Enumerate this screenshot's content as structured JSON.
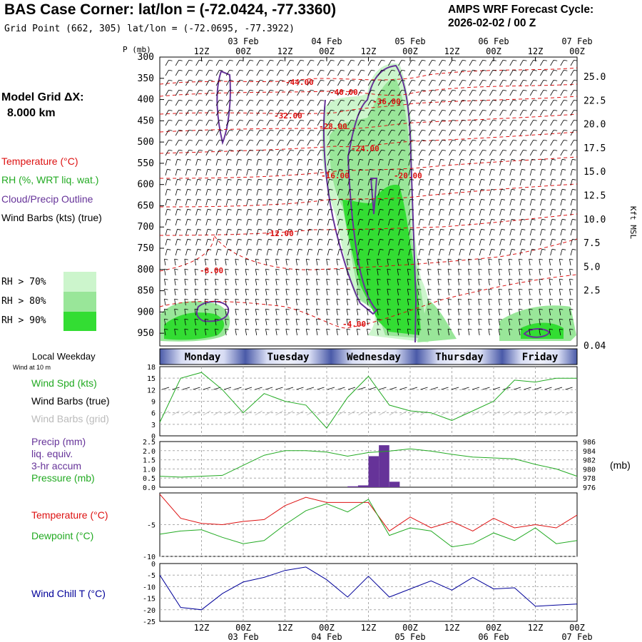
{
  "header": {
    "title": "BAS Case Corner:  lat/lon = (-72.0424, -77.3360)",
    "subtitle": "Grid Point (662, 305) lat/lon = (-72.0695, -77.3922)",
    "cycle_line1": "AMPS WRF Forecast Cycle:",
    "cycle_line2": "2026-02-02 / 00  Z"
  },
  "legend": {
    "model_grid_label": "Model Grid ΔX:",
    "model_grid_value": "8.000 km",
    "temperature": "Temperature (°C)",
    "rh": "RH (%, WRT liq. wat.)",
    "cloud": "Cloud/Precip Outline",
    "wind": "Wind Barbs (kts) (true)",
    "rh70": "RH > 70%",
    "rh80": "RH > 80%",
    "rh90": "RH > 90%",
    "colors": {
      "temperature": "#dd1111",
      "rh": "#22aa22",
      "cloud": "#663399",
      "rh70": "#ccf5cc",
      "rh80": "#99e699",
      "rh90": "#33dd33"
    }
  },
  "time_axis": {
    "top_day_labels": [
      "03 Feb",
      "04 Feb",
      "05 Feb",
      "06 Feb",
      "07 Feb"
    ],
    "hour_labels": [
      "12Z",
      "00Z",
      "12Z",
      "00Z",
      "12Z",
      "00Z",
      "12Z",
      "00Z",
      "12Z",
      "00Z"
    ],
    "bottom_day_labels": [
      "03 Feb",
      "04 Feb",
      "05 Feb",
      "06 Feb",
      "07 Feb"
    ]
  },
  "weekday_bar": {
    "label": "Local Weekday",
    "sublabel": "Wind at 10 m",
    "days": [
      "Monday",
      "Tuesday",
      "Wednesday",
      "Thursday",
      "Friday"
    ]
  },
  "panel_labels": {
    "wind_spd": "Wind Spd (kts)",
    "wind_barbs_true": "Wind Barbs (true)",
    "wind_barbs_grid": "Wind Barbs (grid)",
    "precip1": "Precip (mm)",
    "precip2": "liq. equiv.",
    "precip3": "3-hr accum",
    "pressure": "Pressure (mb)",
    "pressure_units": "(mb)",
    "temperature": "Temperature (°C)",
    "dewpoint": "Dewpoint (°C)",
    "wind_chill": "Wind Chill T (°C)"
  },
  "chart_data": [
    {
      "type": "heatmap",
      "ylabel": "P (mb)",
      "y_right_label": "Kft MSL",
      "pressure_ticks": [
        300,
        350,
        400,
        450,
        500,
        550,
        600,
        650,
        700,
        750,
        800,
        850,
        900,
        950
      ],
      "height_ticks": [
        "25.0",
        "22.5",
        "20.0",
        "17.5",
        "15.0",
        "12.5",
        "10.0",
        "7.5",
        "5.0",
        "2.5",
        "0.04"
      ],
      "temperature_labels": [
        "-44.00",
        "-40.00",
        "-36.00",
        "-32.00",
        "-28.00",
        "-24.00",
        "-20.00",
        "-16.00",
        "-12.00",
        "-8.00",
        "-4.00"
      ],
      "forecast_hours_range": [
        0,
        120
      ],
      "pressure_range_mb": [
        300,
        980
      ]
    },
    {
      "type": "line",
      "title": "Wind Spd (kts)",
      "yticks": [
        0,
        3,
        6,
        9,
        12,
        15,
        18
      ],
      "ylim": [
        0,
        18
      ],
      "x_hours": [
        0,
        6,
        12,
        18,
        24,
        30,
        36,
        42,
        48,
        54,
        60,
        66,
        72,
        78,
        84,
        90,
        96,
        102,
        108,
        114,
        120
      ],
      "series": [
        {
          "values": [
            3.5,
            15,
            16.5,
            12,
            6,
            11,
            9,
            8,
            2,
            10,
            15.5,
            8,
            6.5,
            6,
            4,
            6.5,
            9,
            14.5,
            14,
            15,
            15
          ]
        }
      ]
    },
    {
      "type": "bar",
      "yticks_left": [
        0.0,
        0.5,
        1.0,
        1.5,
        2.0,
        2.5
      ],
      "yticks_right": [
        976,
        978,
        980,
        982,
        984,
        986
      ],
      "precip_bars": [
        {
          "hours": [
            54,
            57
          ],
          "mm": 0.05
        },
        {
          "hours": [
            57,
            60
          ],
          "mm": 0.1
        },
        {
          "hours": [
            60,
            63
          ],
          "mm": 1.7
        },
        {
          "hours": [
            63,
            66
          ],
          "mm": 2.3
        },
        {
          "hours": [
            66,
            69
          ],
          "mm": 0.3
        }
      ],
      "pressure_series": {
        "x_hours": [
          0,
          6,
          12,
          18,
          24,
          30,
          36,
          42,
          48,
          54,
          60,
          66,
          72,
          78,
          84,
          90,
          96,
          102,
          108,
          114,
          120
        ],
        "values": [
          978.4,
          978.2,
          978.4,
          978.6,
          980.8,
          983.0,
          984.0,
          984.0,
          983.7,
          982.8,
          983.6,
          983.9,
          984.4,
          983.9,
          983.2,
          982.6,
          982.4,
          982.2,
          981.0,
          980.0,
          978.4
        ]
      }
    },
    {
      "type": "line",
      "yticks": [
        -5,
        -10
      ],
      "ylim": [
        -10,
        0
      ],
      "x_hours": [
        0,
        6,
        12,
        18,
        24,
        30,
        36,
        42,
        48,
        54,
        60,
        66,
        72,
        78,
        84,
        90,
        96,
        102,
        108,
        114,
        120
      ],
      "series": [
        {
          "name": "Temperature (°C)",
          "values": [
            -0.2,
            -4.0,
            -4.8,
            -5.0,
            -4.5,
            -4.2,
            -2.0,
            -0.7,
            -1.5,
            -1.5,
            -1.5,
            -6.0,
            -3.8,
            -5.5,
            -4.5,
            -6.0,
            -4.0,
            -5.5,
            -5.0,
            -5.5,
            -3.5
          ]
        },
        {
          "name": "Dewpoint (°C)",
          "values": [
            -6.5,
            -6.0,
            -5.8,
            -7.0,
            -8.0,
            -7.5,
            -5.0,
            -2.8,
            -1.7,
            -3.0,
            -1.0,
            -6.7,
            -5.5,
            -6.0,
            -8.5,
            -8.0,
            -6.3,
            -7.5,
            -5.5,
            -8.0,
            -7.5
          ]
        }
      ]
    },
    {
      "type": "line",
      "yticks": [
        0,
        -5,
        -10,
        -15,
        -20,
        -25
      ],
      "ylim": [
        -25,
        0
      ],
      "x_hours": [
        0,
        6,
        12,
        18,
        24,
        30,
        36,
        42,
        48,
        54,
        60,
        66,
        72,
        78,
        84,
        90,
        96,
        102,
        108,
        114,
        120
      ],
      "series": [
        {
          "name": "Wind Chill T (°C)",
          "values": [
            -5.0,
            -19.0,
            -20.0,
            -13.0,
            -8.0,
            -6.0,
            -3.0,
            -1.5,
            -7.0,
            -14.5,
            -5.5,
            -14.5,
            -11.0,
            -7.5,
            -11.5,
            -6.0,
            -11.0,
            -10.5,
            -18.5,
            -18.0,
            -17.5
          ]
        }
      ]
    }
  ]
}
